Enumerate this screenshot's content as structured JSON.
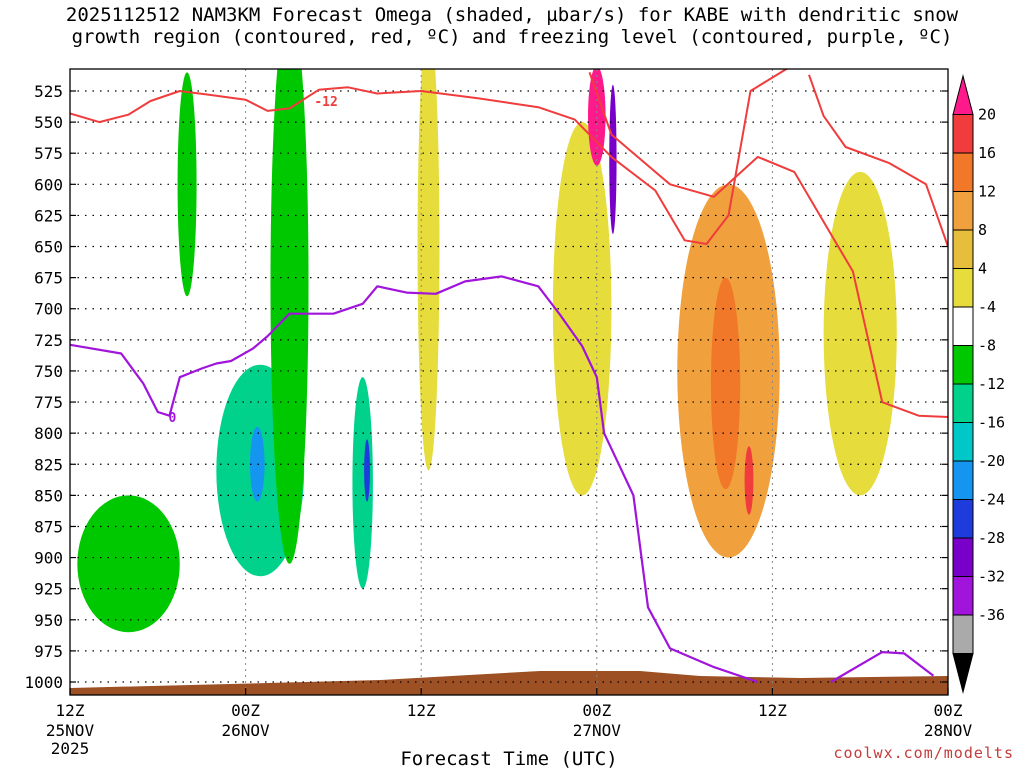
{
  "chart_data": {
    "type": "heatmap",
    "title_line1": "2025112512 NAM3KM Forecast Omega (shaded, µbar/s) for KABE with dendritic snow",
    "title_line2": "growth region (contoured, red, ºC) and freezing level (contoured, purple, ºC)",
    "xlabel": "Forecast Time (UTC)",
    "x_ticks": [
      {
        "hour": 0,
        "label": "12Z",
        "date": "25NOV",
        "year": "2025"
      },
      {
        "hour": 12,
        "label": "00Z",
        "date": "26NOV",
        "year": ""
      },
      {
        "hour": 24,
        "label": "12Z",
        "date": "",
        "year": ""
      },
      {
        "hour": 36,
        "label": "00Z",
        "date": "27NOV",
        "year": ""
      },
      {
        "hour": 48,
        "label": "12Z",
        "date": "",
        "year": ""
      },
      {
        "hour": 60,
        "label": "00Z",
        "date": "28NOV",
        "year": ""
      }
    ],
    "xlim": [
      0,
      60
    ],
    "y_ticks": [
      525,
      550,
      575,
      600,
      625,
      650,
      675,
      700,
      725,
      750,
      775,
      800,
      825,
      850,
      875,
      900,
      925,
      950,
      975,
      1000
    ],
    "ylim_hpa": [
      508,
      1010
    ],
    "colorbar_labels": [
      "20",
      "16",
      "12",
      "8",
      "4",
      "-4",
      "-8",
      "-12",
      "-16",
      "-20",
      "-24",
      "-28",
      "-32",
      "-36"
    ],
    "colorbar_colors": [
      "#ff1a8c",
      "#f03c3c",
      "#f07828",
      "#f0a03c",
      "#e6be3c",
      "#e6dc3c",
      "#ffffff",
      "#00c800",
      "#00d28c",
      "#00c8c8",
      "#1496f0",
      "#1e3cdc",
      "#7800c8",
      "#a014dc",
      "#aaaaaa",
      "#000000"
    ],
    "contour_labels": [
      {
        "text": "-12",
        "color": "#f03c3c",
        "hour": 17.5,
        "p": 533
      },
      {
        "text": "0",
        "color": "#a014dc",
        "hour": 7,
        "p": 787
      }
    ],
    "freezing_level_0C": [
      {
        "h": 0,
        "p": 729
      },
      {
        "h": 3.5,
        "p": 736
      },
      {
        "h": 5,
        "p": 760
      },
      {
        "h": 6,
        "p": 783
      },
      {
        "h": 6.8,
        "p": 786
      },
      {
        "h": 7.5,
        "p": 755
      },
      {
        "h": 9,
        "p": 748
      },
      {
        "h": 10,
        "p": 744
      },
      {
        "h": 11,
        "p": 742
      },
      {
        "h": 12.5,
        "p": 732
      },
      {
        "h": 13.5,
        "p": 722
      },
      {
        "h": 15,
        "p": 704
      },
      {
        "h": 18,
        "p": 704
      },
      {
        "h": 20,
        "p": 696
      },
      {
        "h": 21,
        "p": 682
      },
      {
        "h": 23,
        "p": 687
      },
      {
        "h": 25,
        "p": 688
      },
      {
        "h": 27,
        "p": 678
      },
      {
        "h": 29.5,
        "p": 674
      },
      {
        "h": 32,
        "p": 682
      },
      {
        "h": 33.5,
        "p": 705
      },
      {
        "h": 35,
        "p": 730
      },
      {
        "h": 36,
        "p": 755
      },
      {
        "h": 36.5,
        "p": 800
      },
      {
        "h": 37.5,
        "p": 825
      },
      {
        "h": 38.5,
        "p": 850
      },
      {
        "h": 39.5,
        "p": 940
      },
      {
        "h": 41,
        "p": 973
      },
      {
        "h": 44,
        "p": 988
      },
      {
        "h": 47,
        "p": 1000
      }
    ],
    "freezing_level_0C_b": [
      {
        "h": 52,
        "p": 1000
      },
      {
        "h": 55.5,
        "p": 976
      },
      {
        "h": 57,
        "p": 977
      },
      {
        "h": 59,
        "p": 995
      }
    ],
    "dgz_minus12C": [
      {
        "h": 0,
        "p": 543
      },
      {
        "h": 2,
        "p": 550
      },
      {
        "h": 4,
        "p": 544
      },
      {
        "h": 5.5,
        "p": 533
      },
      {
        "h": 7.5,
        "p": 525
      },
      {
        "h": 9.5,
        "p": 528
      },
      {
        "h": 12,
        "p": 532
      },
      {
        "h": 13.5,
        "p": 541
      },
      {
        "h": 15,
        "p": 539
      },
      {
        "h": 17,
        "p": 524
      },
      {
        "h": 19,
        "p": 522
      },
      {
        "h": 21,
        "p": 527
      },
      {
        "h": 24,
        "p": 525
      },
      {
        "h": 28,
        "p": 531
      },
      {
        "h": 32,
        "p": 538
      },
      {
        "h": 34.5,
        "p": 548
      },
      {
        "h": 37,
        "p": 578
      },
      {
        "h": 40,
        "p": 605
      },
      {
        "h": 42,
        "p": 645
      },
      {
        "h": 43.5,
        "p": 648
      },
      {
        "h": 45,
        "p": 625
      },
      {
        "h": 46.5,
        "p": 525
      },
      {
        "h": 49,
        "p": 507
      }
    ],
    "dgz_minus12C_b": [
      {
        "h": 50.5,
        "p": 512
      },
      {
        "h": 51.5,
        "p": 545
      },
      {
        "h": 53,
        "p": 570
      },
      {
        "h": 56,
        "p": 583
      },
      {
        "h": 58.5,
        "p": 600
      },
      {
        "h": 60,
        "p": 650
      }
    ],
    "dgz_upper_boundary": [
      {
        "h": 35.5,
        "p": 510
      },
      {
        "h": 37,
        "p": 560
      },
      {
        "h": 40,
        "p": 590
      },
      {
        "h": 41,
        "p": 600
      },
      {
        "h": 44,
        "p": 610
      },
      {
        "h": 47,
        "p": 578
      },
      {
        "h": 49.5,
        "p": 590
      },
      {
        "h": 52,
        "p": 640
      },
      {
        "h": 53.5,
        "p": 670
      },
      {
        "h": 55.5,
        "p": 775
      },
      {
        "h": 58,
        "p": 786
      },
      {
        "h": 60,
        "p": 787
      }
    ],
    "omega_regions": [
      {
        "level": "-4",
        "h_center": 4,
        "p_center": 905,
        "h_width": 7,
        "p_depth": 110
      },
      {
        "level": "-8",
        "h_center": 13,
        "p_center": 830,
        "h_width": 6,
        "p_depth": 170
      },
      {
        "level": "-16",
        "h_center": 12.8,
        "p_center": 825,
        "h_width": 1,
        "p_depth": 60
      },
      {
        "level": "-4",
        "h_center": 8,
        "p_center": 600,
        "h_width": 1.3,
        "p_depth": 180
      },
      {
        "level": "-4",
        "h_center": 15,
        "p_center": 680,
        "h_width": 2.6,
        "p_depth": 450
      },
      {
        "level": "-8",
        "h_center": 20,
        "p_center": 840,
        "h_width": 1.4,
        "p_depth": 170
      },
      {
        "level": "-20",
        "h_center": 20.3,
        "p_center": 830,
        "h_width": 0.4,
        "p_depth": 50
      },
      {
        "level": "4",
        "h_center": 24.5,
        "p_center": 650,
        "h_width": 1.5,
        "p_depth": 360
      },
      {
        "level": "4",
        "h_center": 35,
        "p_center": 700,
        "h_width": 4,
        "p_depth": 300
      },
      {
        "level": "20",
        "h_center": 36,
        "p_center": 545,
        "h_width": 1.2,
        "p_depth": 80
      },
      {
        "level": "-24",
        "h_center": 37.1,
        "p_center": 580,
        "h_width": 0.5,
        "p_depth": 120
      },
      {
        "level": "8",
        "h_center": 45,
        "p_center": 750,
        "h_width": 7,
        "p_depth": 300
      },
      {
        "level": "12",
        "h_center": 44.8,
        "p_center": 760,
        "h_width": 2,
        "p_depth": 170
      },
      {
        "level": "16",
        "h_center": 46.4,
        "p_center": 838,
        "h_width": 0.6,
        "p_depth": 55
      },
      {
        "level": "4",
        "h_center": 54,
        "p_center": 720,
        "h_width": 5,
        "p_depth": 260
      }
    ],
    "surface_band_color": "#9c5024"
  },
  "credit": "coolwx.com/modelts"
}
